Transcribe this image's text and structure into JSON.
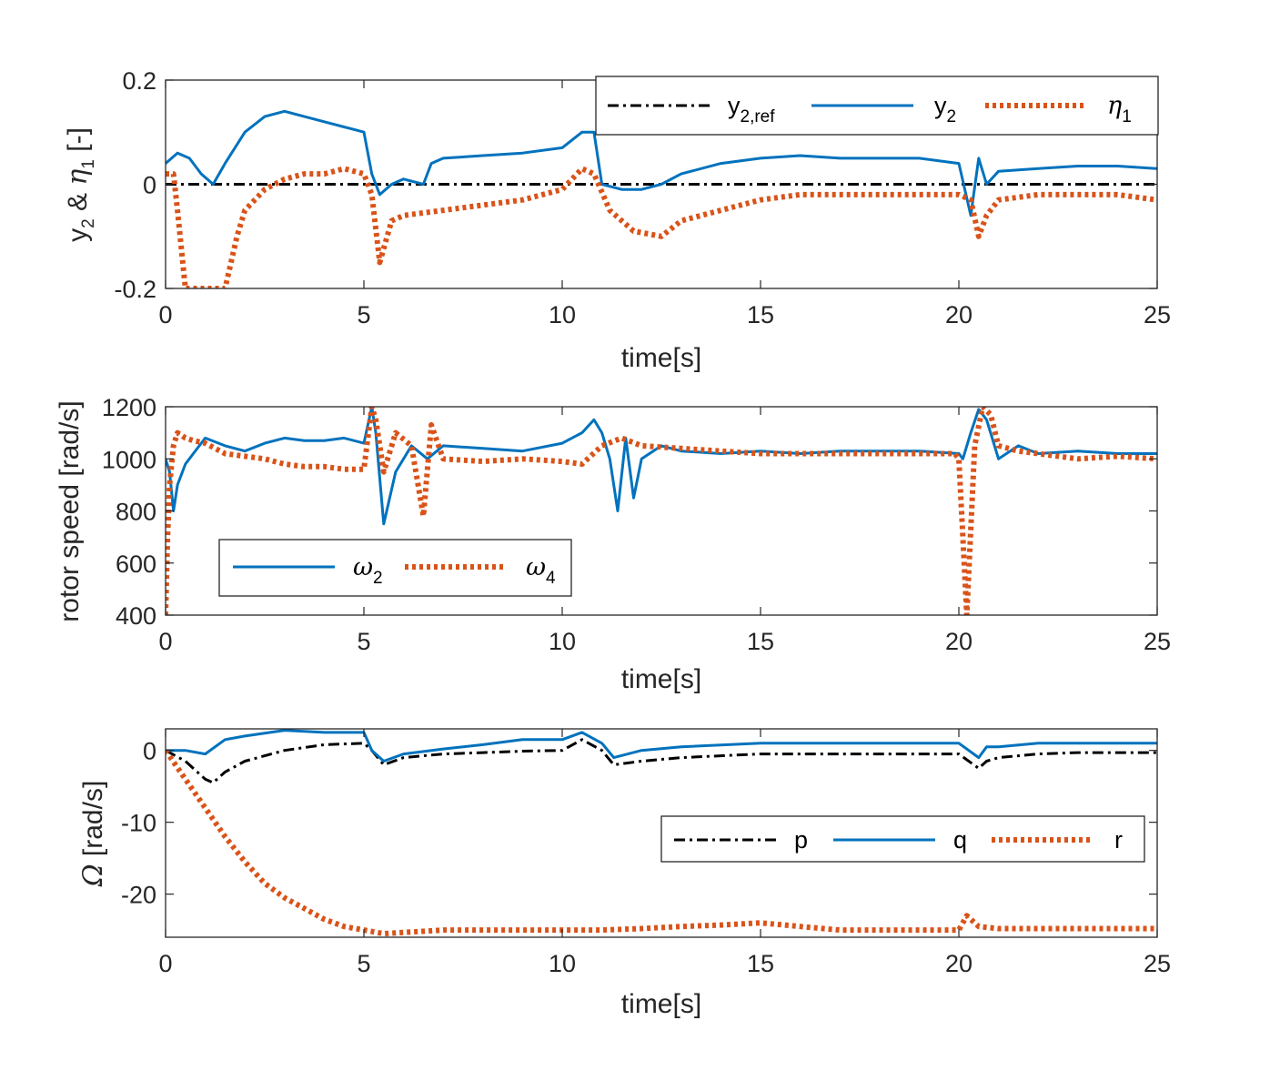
{
  "chart_data": [
    {
      "type": "line",
      "title": "",
      "xlabel": "time[s]",
      "ylabel": {
        "parts": [
          "y",
          "2",
          " & ",
          "η",
          "1",
          " [-]"
        ]
      },
      "xlim": [
        0,
        25
      ],
      "ylim": [
        -0.2,
        0.2
      ],
      "xticks": [
        "0",
        "5",
        "10",
        "15",
        "20",
        "25"
      ],
      "yticks": [
        "-0.2",
        "0",
        "0.2"
      ],
      "legend_position": "top-right",
      "series": [
        {
          "name": "y2,ref",
          "legend": {
            "base": "y",
            "sub": "2,ref",
            "greek": false
          },
          "style": "dashdot",
          "color": "#000000",
          "x": [
            0,
            25
          ],
          "y": [
            0,
            0
          ]
        },
        {
          "name": "y2",
          "legend": {
            "base": "y",
            "sub": "2",
            "greek": false
          },
          "style": "solid",
          "color": "#0072BD",
          "x": [
            0,
            0.3,
            0.6,
            0.9,
            1.2,
            1.5,
            2.0,
            2.5,
            3.0,
            3.5,
            4.0,
            4.5,
            5.0,
            5.2,
            5.4,
            5.7,
            6.0,
            6.5,
            6.7,
            7.0,
            8.0,
            9.0,
            10.0,
            10.5,
            10.8,
            11.0,
            11.5,
            12.0,
            12.5,
            13.0,
            14.0,
            15.0,
            16.0,
            17.0,
            18.0,
            19.0,
            20.0,
            20.3,
            20.5,
            20.7,
            21.0,
            22.0,
            23.0,
            24.0,
            25.0
          ],
          "y": [
            0.04,
            0.06,
            0.05,
            0.02,
            0.0,
            0.04,
            0.1,
            0.13,
            0.14,
            0.13,
            0.12,
            0.11,
            0.1,
            0.02,
            -0.02,
            0.0,
            0.01,
            0.0,
            0.04,
            0.05,
            0.055,
            0.06,
            0.07,
            0.1,
            0.1,
            0.0,
            -0.01,
            -0.01,
            0.0,
            0.02,
            0.04,
            0.05,
            0.055,
            0.05,
            0.05,
            0.05,
            0.04,
            -0.06,
            0.05,
            0.0,
            0.025,
            0.03,
            0.035,
            0.035,
            0.03
          ]
        },
        {
          "name": "η1",
          "legend": {
            "base": "η",
            "sub": "1",
            "greek": true
          },
          "style": "dotted",
          "color": "#D95319",
          "x": [
            0,
            0.2,
            0.3,
            0.5,
            0.8,
            1.2,
            1.5,
            1.8,
            2.0,
            2.5,
            3.0,
            3.5,
            4.0,
            4.5,
            5.0,
            5.2,
            5.4,
            5.7,
            6.0,
            7.0,
            8.0,
            9.0,
            10.0,
            10.5,
            10.8,
            11.2,
            11.8,
            12.5,
            13.0,
            14.0,
            15.0,
            16.0,
            17.0,
            18.0,
            19.0,
            20.0,
            20.3,
            20.5,
            20.7,
            21.0,
            22.0,
            23.0,
            24.0,
            25.0
          ],
          "y": [
            0.02,
            0.02,
            -0.05,
            -0.2,
            -0.2,
            -0.2,
            -0.2,
            -0.1,
            -0.05,
            -0.01,
            0.01,
            0.02,
            0.02,
            0.03,
            0.02,
            -0.02,
            -0.15,
            -0.07,
            -0.06,
            -0.05,
            -0.04,
            -0.03,
            -0.01,
            0.03,
            0.02,
            -0.05,
            -0.09,
            -0.1,
            -0.07,
            -0.05,
            -0.03,
            -0.02,
            -0.02,
            -0.02,
            -0.02,
            -0.02,
            -0.03,
            -0.1,
            -0.06,
            -0.03,
            -0.02,
            -0.02,
            -0.02,
            -0.03
          ]
        }
      ]
    },
    {
      "type": "line",
      "title": "",
      "xlabel": "time[s]",
      "ylabel": {
        "parts": [
          "rotor speed [rad/s]"
        ]
      },
      "xlim": [
        0,
        25
      ],
      "ylim": [
        400,
        1200
      ],
      "xticks": [
        "0",
        "5",
        "10",
        "15",
        "20",
        "25"
      ],
      "yticks": [
        "400",
        "600",
        "800",
        "1000",
        "1200"
      ],
      "legend_position": "bottom-left",
      "series": [
        {
          "name": "ω2",
          "legend": {
            "base": "ω",
            "sub": "2",
            "greek": true
          },
          "style": "solid",
          "color": "#0072BD",
          "x": [
            0,
            0.1,
            0.2,
            0.3,
            0.5,
            0.7,
            1.0,
            1.5,
            2.0,
            2.5,
            3.0,
            3.5,
            4.0,
            4.5,
            5.0,
            5.2,
            5.3,
            5.5,
            5.8,
            6.2,
            6.6,
            7.0,
            8.0,
            9.0,
            10.0,
            10.5,
            10.8,
            11.0,
            11.2,
            11.4,
            11.6,
            11.8,
            12.0,
            12.5,
            13.0,
            14.0,
            15.0,
            16.0,
            17.0,
            18.0,
            19.0,
            20.0,
            20.1,
            20.3,
            20.5,
            20.7,
            21.0,
            21.5,
            22.0,
            23.0,
            24.0,
            25.0
          ],
          "y": [
            1000,
            950,
            800,
            900,
            980,
            1020,
            1080,
            1050,
            1030,
            1060,
            1080,
            1070,
            1070,
            1080,
            1060,
            1200,
            1100,
            750,
            950,
            1050,
            1000,
            1050,
            1040,
            1030,
            1060,
            1100,
            1150,
            1100,
            1000,
            800,
            1080,
            850,
            1000,
            1050,
            1030,
            1020,
            1030,
            1020,
            1030,
            1030,
            1030,
            1020,
            1000,
            1100,
            1190,
            1150,
            1000,
            1050,
            1020,
            1030,
            1020,
            1020
          ]
        },
        {
          "name": "ω4",
          "legend": {
            "base": "ω",
            "sub": "4",
            "greek": true
          },
          "style": "dotted",
          "color": "#D95319",
          "x": [
            0,
            0.05,
            0.1,
            0.2,
            0.3,
            0.5,
            0.7,
            1.0,
            1.5,
            2.0,
            2.5,
            3.0,
            3.5,
            4.0,
            4.5,
            5.0,
            5.2,
            5.3,
            5.5,
            5.8,
            6.2,
            6.5,
            6.7,
            7.0,
            8.0,
            9.0,
            10.0,
            10.5,
            11.0,
            11.5,
            12.0,
            13.0,
            14.0,
            15.0,
            16.0,
            17.0,
            18.0,
            19.0,
            19.9,
            20.0,
            20.1,
            20.2,
            20.4,
            20.6,
            20.8,
            21.0,
            21.5,
            22.0,
            23.0,
            24.0,
            25.0
          ],
          "y": [
            400,
            700,
            900,
            1050,
            1100,
            1080,
            1070,
            1060,
            1020,
            1010,
            1000,
            980,
            970,
            970,
            960,
            960,
            1200,
            1150,
            950,
            1100,
            1050,
            780,
            1130,
            1000,
            990,
            1000,
            990,
            980,
            1050,
            1080,
            1050,
            1040,
            1030,
            1020,
            1020,
            1020,
            1020,
            1020,
            1020,
            1000,
            700,
            400,
            1050,
            1200,
            1170,
            1050,
            1030,
            1020,
            1000,
            1010,
            1000
          ]
        }
      ]
    },
    {
      "type": "line",
      "title": "",
      "xlabel": "time[s]",
      "ylabel": {
        "parts": [
          "Ω",
          " [rad/s]"
        ]
      },
      "xlim": [
        0,
        25
      ],
      "ylim": [
        -26,
        3
      ],
      "xticks": [
        "0",
        "5",
        "10",
        "15",
        "20",
        "25"
      ],
      "yticks": [
        "-20",
        "-10",
        "0"
      ],
      "legend_position": "right",
      "series": [
        {
          "name": "p",
          "legend": {
            "base": "p",
            "sub": "",
            "greek": false
          },
          "style": "dashdot",
          "color": "#000000",
          "x": [
            0,
            0.5,
            1.0,
            1.2,
            1.5,
            2.0,
            3.0,
            4.0,
            5.0,
            5.2,
            5.5,
            6.0,
            7.0,
            8.0,
            9.0,
            10.0,
            10.5,
            11.0,
            11.3,
            12.0,
            13.0,
            15.0,
            17.0,
            19.0,
            20.0,
            20.5,
            20.7,
            21.0,
            22.0,
            23.0,
            25.0
          ],
          "y": [
            0,
            -1.5,
            -4,
            -4.5,
            -3,
            -1.5,
            0,
            0.8,
            1,
            0,
            -2,
            -1,
            -0.5,
            -0.3,
            -0.1,
            0,
            1.5,
            0,
            -2,
            -1.5,
            -1,
            -0.5,
            -0.5,
            -0.5,
            -0.5,
            -2.5,
            -1.5,
            -1,
            -0.5,
            -0.3,
            -0.3
          ]
        },
        {
          "name": "q",
          "legend": {
            "base": "q",
            "sub": "",
            "greek": false
          },
          "style": "solid",
          "color": "#0072BD",
          "x": [
            0,
            0.5,
            1.0,
            1.5,
            2.0,
            3.0,
            4.0,
            5.0,
            5.2,
            5.5,
            6.0,
            7.0,
            8.0,
            9.0,
            10.0,
            10.5,
            11.0,
            11.3,
            12.0,
            13.0,
            15.0,
            17.0,
            19.0,
            20.0,
            20.5,
            20.7,
            21.0,
            22.0,
            23.0,
            25.0
          ],
          "y": [
            0,
            0,
            -0.5,
            1.5,
            2,
            2.8,
            2.5,
            2.5,
            0,
            -1.5,
            -0.5,
            0.2,
            0.8,
            1.5,
            1.5,
            2.5,
            1,
            -1,
            0,
            0.5,
            1,
            1,
            1,
            1,
            -1,
            0.5,
            0.5,
            1,
            1,
            1
          ]
        },
        {
          "name": "r",
          "legend": {
            "base": "r",
            "sub": "",
            "greek": false
          },
          "style": "dotted",
          "color": "#D95319",
          "x": [
            0,
            0.5,
            1.0,
            1.5,
            2.0,
            2.5,
            3.0,
            3.5,
            4.0,
            4.5,
            5.0,
            5.5,
            7.0,
            9.0,
            10.0,
            11.0,
            12.0,
            13.0,
            14.0,
            15.0,
            16.0,
            17.0,
            18.0,
            19.0,
            20.0,
            20.2,
            20.5,
            21.0,
            22.0,
            23.0,
            24.0,
            25.0
          ],
          "y": [
            0,
            -4,
            -8,
            -12,
            -15.5,
            -18.5,
            -20.5,
            -22,
            -23.5,
            -24.5,
            -25,
            -25.5,
            -25,
            -25,
            -25,
            -25,
            -24.8,
            -24.5,
            -24.3,
            -24,
            -24.5,
            -25,
            -25,
            -25,
            -25,
            -23,
            -24.5,
            -24.8,
            -24.8,
            -24.8,
            -24.8,
            -24.8
          ]
        }
      ]
    }
  ]
}
